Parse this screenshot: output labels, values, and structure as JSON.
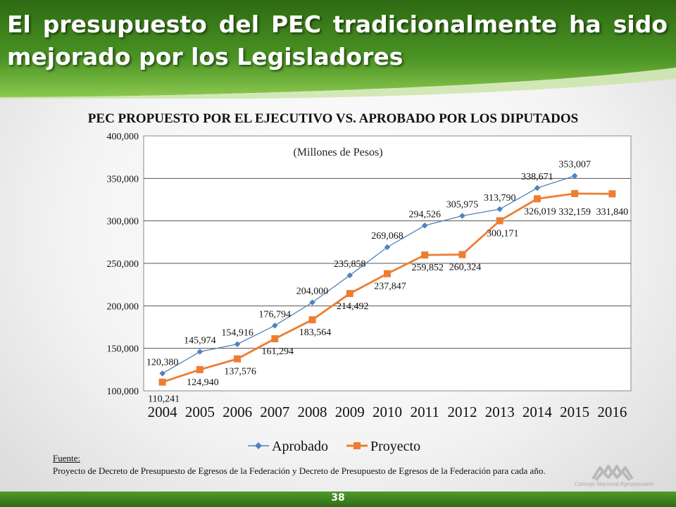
{
  "slide": {
    "title": "El presupuesto del PEC tradicionalmente ha sido mejorado por los Legisladores",
    "page_number": "38",
    "source_label": "Fuente:",
    "source_text": "Proyecto de Decreto de Presupuesto de Egresos de la Federación y Decreto de Presupuesto de Egresos de la Federación para cada año.",
    "logo_caption": "Consejo Nacional Agropecuario",
    "colors": {
      "header_green": "#3f8a1f",
      "aprobado": "#4f81bd",
      "proyecto": "#ed7d31"
    }
  },
  "chart_data": {
    "type": "line",
    "title": "PEC PROPUESTO POR EL EJECUTIVO VS. APROBADO POR LOS DIPUTADOS",
    "subtitle": "(Millones de Pesos)",
    "xlabel": "",
    "ylabel": "",
    "categories": [
      "2004",
      "2005",
      "2006",
      "2007",
      "2008",
      "2009",
      "2010",
      "2011",
      "2012",
      "2013",
      "2014",
      "2015",
      "2016"
    ],
    "ylim": [
      100000,
      400000
    ],
    "yticks": [
      100000,
      150000,
      200000,
      250000,
      300000,
      350000,
      400000
    ],
    "ytick_labels": [
      "100,000",
      "150,000",
      "200,000",
      "250,000",
      "300,000",
      "350,000",
      "400,000"
    ],
    "grid": true,
    "legend": "bottom",
    "series": [
      {
        "name": "Aprobado",
        "color": "#4f81bd",
        "marker": "diamond",
        "values": [
          120380,
          145974,
          154916,
          176794,
          204000,
          235858,
          269068,
          294526,
          305975,
          313790,
          338671,
          353007,
          null
        ],
        "labels": [
          "120,380",
          "145,974",
          "154,916",
          "176,794",
          "204,000",
          "235,858",
          "269,068",
          "294,526",
          "305,975",
          "313,790",
          "338,671",
          "353,007",
          ""
        ]
      },
      {
        "name": "Proyecto",
        "color": "#ed7d31",
        "marker": "square",
        "values": [
          110241,
          124940,
          137576,
          161294,
          183564,
          214492,
          237847,
          259852,
          260324,
          300171,
          326019,
          332159,
          331840
        ],
        "labels": [
          "110,241",
          "124,940",
          "137,576",
          "161,294",
          "183,564",
          "214,492",
          "237,847",
          "259,852",
          "260,324",
          "300,171",
          "326,019",
          "332,159",
          "331,840"
        ]
      }
    ]
  }
}
